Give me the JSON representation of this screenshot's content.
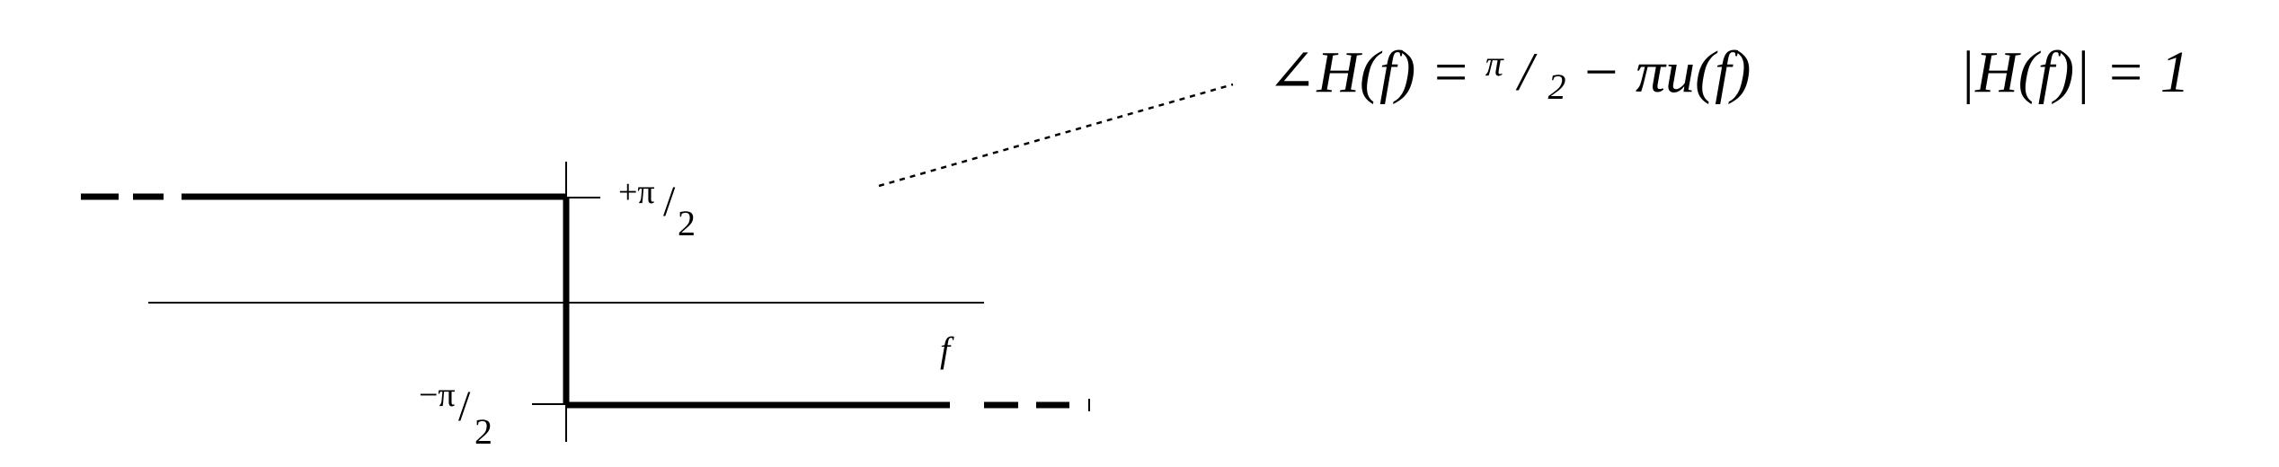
{
  "equations": {
    "phase_lhs": "∠H(f) = ",
    "phase_pi": "π",
    "phase_slash": "/",
    "phase_two": "2",
    "phase_rhs": " − πu(f)",
    "magnitude": "|H(f)| = 1"
  },
  "labels": {
    "plus_pi_prefix": "+π",
    "plus_pi_slash": "/",
    "plus_pi_two": "2",
    "minus_pi_prefix": "−π",
    "minus_pi_slash": "/",
    "minus_pi_two": "2",
    "f_axis": "f"
  }
}
